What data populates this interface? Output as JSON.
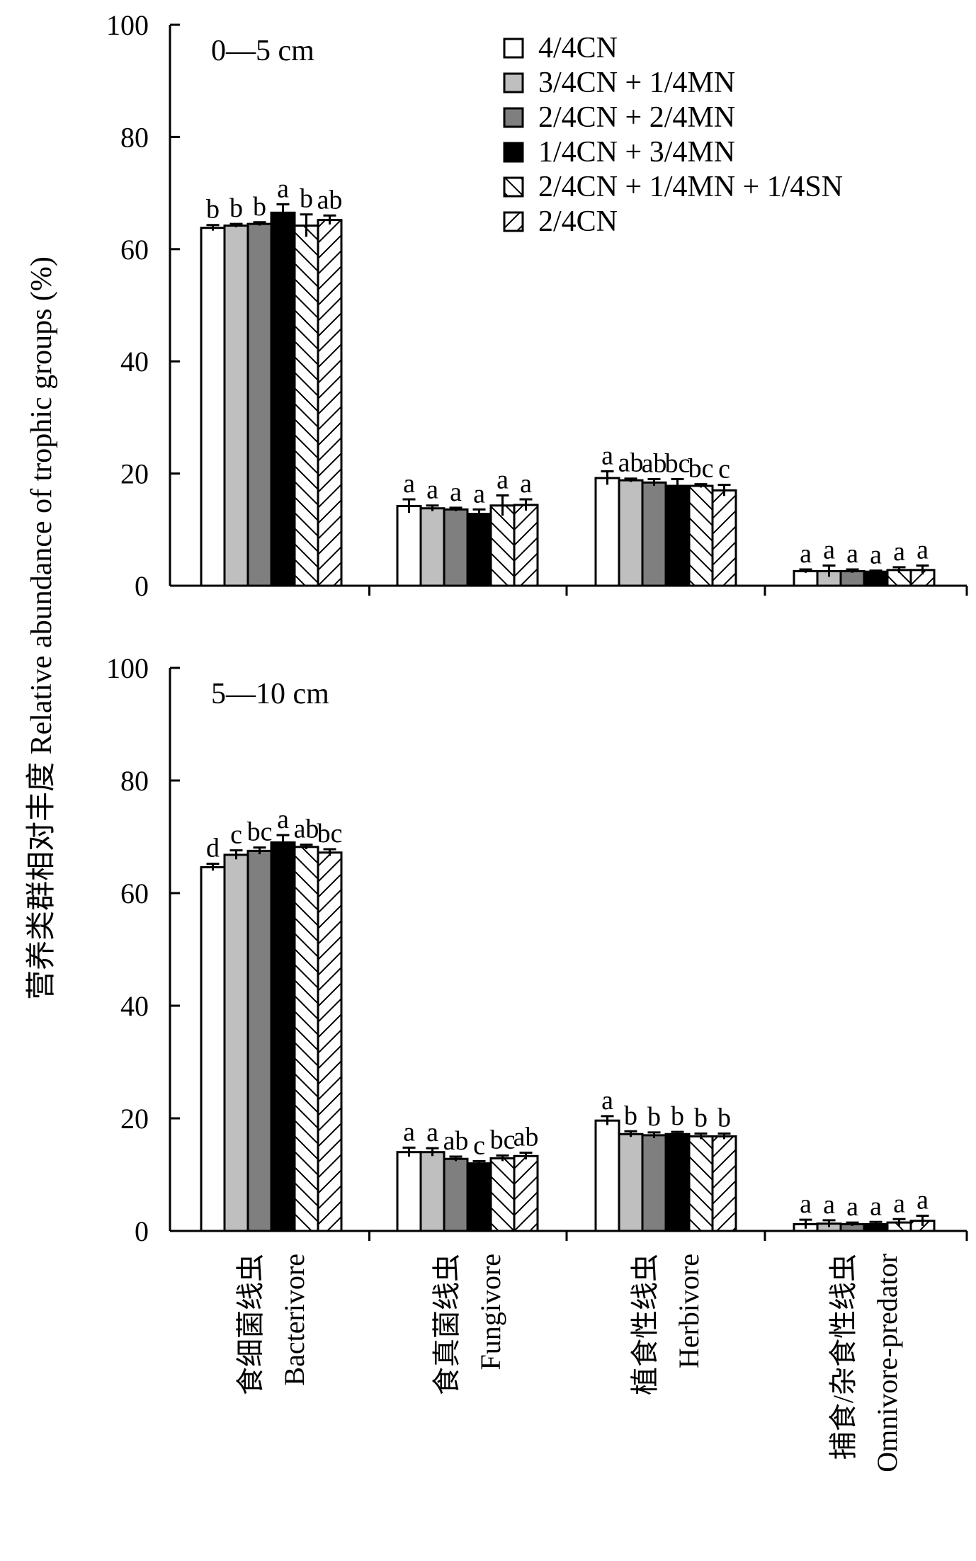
{
  "chart_data": {
    "type": "bar",
    "ylabel": "营养类群相对丰度 Relative abundance of trophic groups (%)",
    "ylim": [
      0,
      100
    ],
    "yticks": [
      0,
      20,
      40,
      60,
      80,
      100
    ],
    "legend_position": "top-right",
    "categories": [
      {
        "cn": "食细菌线虫",
        "en": "Bacterivore"
      },
      {
        "cn": "食真菌线虫",
        "en": "Fungivore"
      },
      {
        "cn": "植食性线虫",
        "en": "Herbivore"
      },
      {
        "cn": "捕食/杂食性线虫",
        "en": "Omnivore-predator"
      }
    ],
    "series": [
      {
        "name": "4/4CN",
        "fill": "#ffffff",
        "pattern": "none"
      },
      {
        "name": "3/4CN + 1/4MN",
        "fill": "#bfbfbf",
        "pattern": "none"
      },
      {
        "name": "2/4CN + 2/4MN",
        "fill": "#7f7f7f",
        "pattern": "none"
      },
      {
        "name": "1/4CN + 3/4MN",
        "fill": "#000000",
        "pattern": "none"
      },
      {
        "name": "2/4CN + 1/4MN + 1/4SN",
        "fill": "#ffffff",
        "pattern": "backslash"
      },
      {
        "name": "2/4CN",
        "fill": "#ffffff",
        "pattern": "slash"
      }
    ],
    "panels": [
      {
        "label": "0—5 cm",
        "values": [
          [
            63.8,
            14.2,
            19.2,
            2.6
          ],
          [
            64.2,
            13.8,
            18.8,
            2.6
          ],
          [
            64.5,
            13.6,
            18.4,
            2.6
          ],
          [
            66.5,
            12.8,
            17.8,
            2.5
          ],
          [
            64.2,
            14.3,
            17.8,
            2.8
          ],
          [
            65.2,
            14.4,
            17.0,
            2.8
          ]
        ],
        "errors": [
          [
            0.5,
            1.2,
            1.2,
            0.3
          ],
          [
            0.3,
            0.5,
            0.3,
            1.0
          ],
          [
            0.3,
            0.3,
            0.6,
            0.3
          ],
          [
            1.5,
            0.8,
            1.2,
            0.2
          ],
          [
            2.0,
            1.8,
            0.3,
            0.5
          ],
          [
            0.8,
            1.0,
            1.0,
            0.8
          ]
        ],
        "letters": [
          [
            "b",
            "a",
            "a",
            "a"
          ],
          [
            "b",
            "a",
            "ab",
            "a"
          ],
          [
            "b",
            "a",
            "ab",
            "a"
          ],
          [
            "a",
            "a",
            "bc",
            "a"
          ],
          [
            "b",
            "a",
            "bc",
            "a"
          ],
          [
            "ab",
            "a",
            "c",
            "a"
          ]
        ]
      },
      {
        "label": "5—10 cm",
        "values": [
          [
            64.6,
            14.0,
            19.6,
            1.2
          ],
          [
            66.8,
            14.0,
            17.2,
            1.3
          ],
          [
            67.5,
            12.8,
            17.0,
            1.2
          ],
          [
            69.0,
            12.0,
            17.2,
            1.2
          ],
          [
            68.2,
            12.9,
            16.8,
            1.5
          ],
          [
            67.2,
            13.3,
            16.8,
            1.8
          ]
        ],
        "errors": [
          [
            0.6,
            0.8,
            0.8,
            0.8
          ],
          [
            0.8,
            0.7,
            0.5,
            0.6
          ],
          [
            0.6,
            0.4,
            0.5,
            0.3
          ],
          [
            1.3,
            0.4,
            0.4,
            0.4
          ],
          [
            0.4,
            0.5,
            0.5,
            0.6
          ],
          [
            0.6,
            0.6,
            0.5,
            0.9
          ]
        ],
        "letters": [
          [
            "d",
            "a",
            "a",
            "a"
          ],
          [
            "c",
            "a",
            "b",
            "a"
          ],
          [
            "bc",
            "ab",
            "b",
            "a"
          ],
          [
            "a",
            "c",
            "b",
            "a"
          ],
          [
            "ab",
            "bc",
            "b",
            "a"
          ],
          [
            "bc",
            "ab",
            "b",
            "a"
          ]
        ]
      }
    ]
  }
}
